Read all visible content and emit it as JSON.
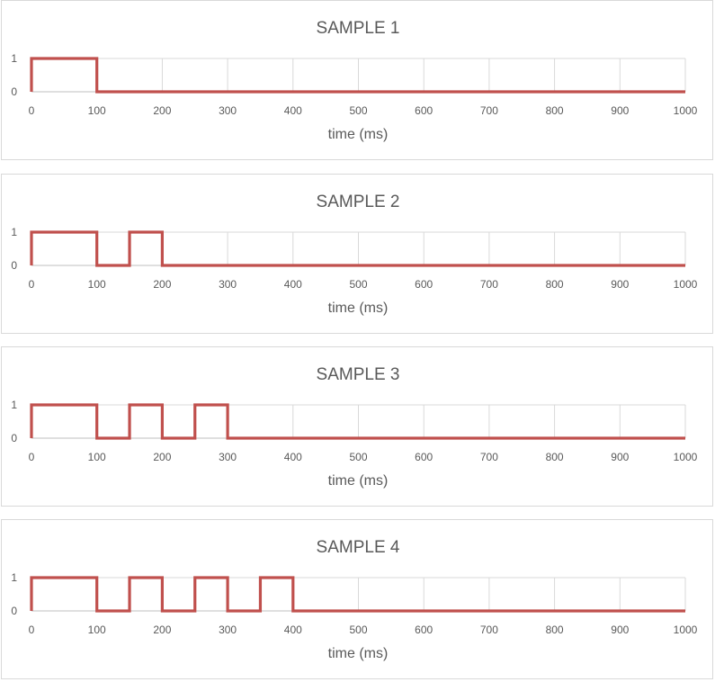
{
  "chart_data": [
    {
      "type": "line",
      "title": "SAMPLE 1",
      "xlabel": "time (ms)",
      "ylabel": "",
      "xlim": [
        0,
        1000
      ],
      "ylim": [
        0,
        1
      ],
      "x_ticks": [
        "0",
        "100",
        "200",
        "300",
        "400",
        "500",
        "600",
        "700",
        "800",
        "900",
        "1000"
      ],
      "y_ticks": [
        "0",
        "1"
      ],
      "grid": "vertical",
      "series": [
        {
          "color": "#c0504d",
          "points": [
            [
              0,
              0
            ],
            [
              0,
              1
            ],
            [
              100,
              1
            ],
            [
              100,
              0
            ],
            [
              1000,
              0
            ]
          ]
        }
      ]
    },
    {
      "type": "line",
      "title": "SAMPLE 2",
      "xlabel": "time (ms)",
      "ylabel": "",
      "xlim": [
        0,
        1000
      ],
      "ylim": [
        0,
        1
      ],
      "x_ticks": [
        "0",
        "100",
        "200",
        "300",
        "400",
        "500",
        "600",
        "700",
        "800",
        "900",
        "1000"
      ],
      "y_ticks": [
        "0",
        "1"
      ],
      "grid": "vertical",
      "series": [
        {
          "color": "#c0504d",
          "points": [
            [
              0,
              0
            ],
            [
              0,
              1
            ],
            [
              100,
              1
            ],
            [
              100,
              0
            ],
            [
              150,
              0
            ],
            [
              150,
              1
            ],
            [
              200,
              1
            ],
            [
              200,
              0
            ],
            [
              1000,
              0
            ]
          ]
        }
      ]
    },
    {
      "type": "line",
      "title": "SAMPLE 3",
      "xlabel": "time (ms)",
      "ylabel": "",
      "xlim": [
        0,
        1000
      ],
      "ylim": [
        0,
        1
      ],
      "x_ticks": [
        "0",
        "100",
        "200",
        "300",
        "400",
        "500",
        "600",
        "700",
        "800",
        "900",
        "1000"
      ],
      "y_ticks": [
        "0",
        "1"
      ],
      "grid": "vertical",
      "series": [
        {
          "color": "#c0504d",
          "points": [
            [
              0,
              0
            ],
            [
              0,
              1
            ],
            [
              100,
              1
            ],
            [
              100,
              0
            ],
            [
              150,
              0
            ],
            [
              150,
              1
            ],
            [
              200,
              1
            ],
            [
              200,
              0
            ],
            [
              250,
              0
            ],
            [
              250,
              1
            ],
            [
              300,
              1
            ],
            [
              300,
              0
            ],
            [
              1000,
              0
            ]
          ]
        }
      ]
    },
    {
      "type": "line",
      "title": "SAMPLE 4",
      "xlabel": "time (ms)",
      "ylabel": "",
      "xlim": [
        0,
        1000
      ],
      "ylim": [
        0,
        1
      ],
      "x_ticks": [
        "0",
        "100",
        "200",
        "300",
        "400",
        "500",
        "600",
        "700",
        "800",
        "900",
        "1000"
      ],
      "y_ticks": [
        "0",
        "1"
      ],
      "grid": "vertical",
      "series": [
        {
          "color": "#c0504d",
          "points": [
            [
              0,
              0
            ],
            [
              0,
              1
            ],
            [
              100,
              1
            ],
            [
              100,
              0
            ],
            [
              150,
              0
            ],
            [
              150,
              1
            ],
            [
              200,
              1
            ],
            [
              200,
              0
            ],
            [
              250,
              0
            ],
            [
              250,
              1
            ],
            [
              300,
              1
            ],
            [
              300,
              0
            ],
            [
              350,
              0
            ],
            [
              350,
              1
            ],
            [
              400,
              1
            ],
            [
              400,
              0
            ],
            [
              1000,
              0
            ]
          ]
        }
      ]
    }
  ],
  "colors": {
    "grid": "#d9d9d9",
    "axis": "#bfbfbf",
    "text": "#595959"
  }
}
